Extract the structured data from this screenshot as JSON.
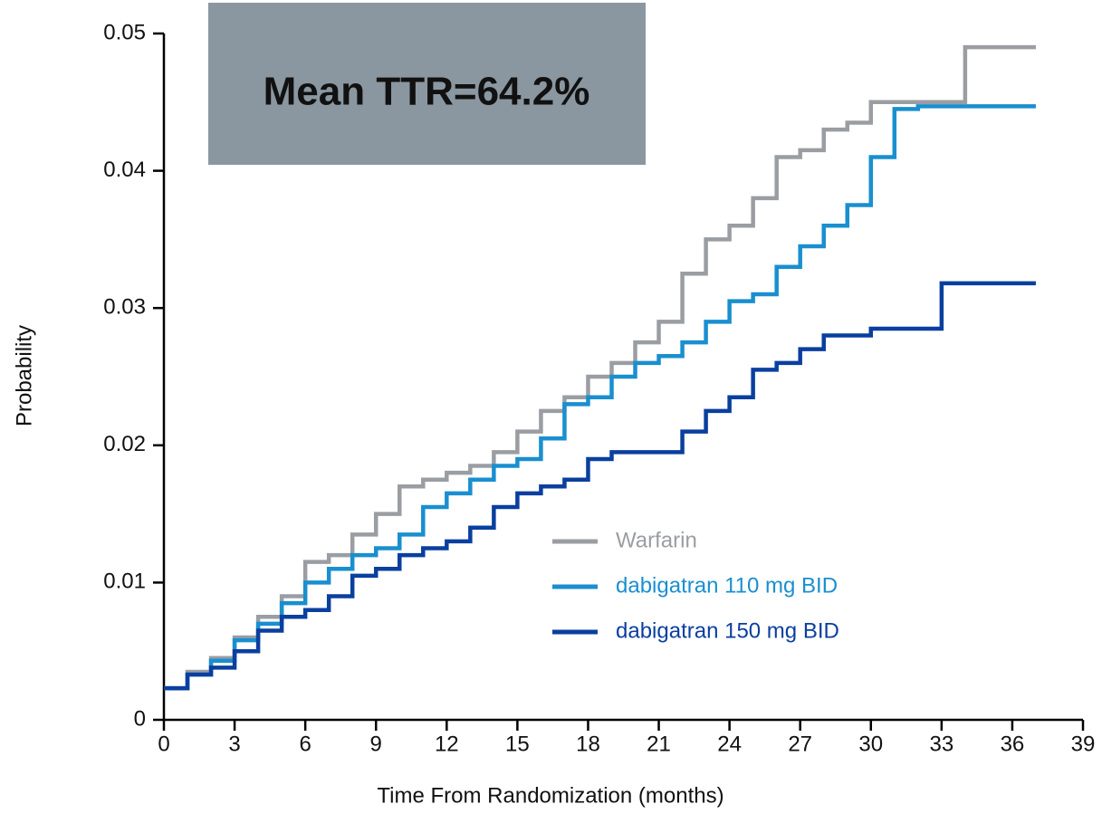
{
  "chart_data": {
    "type": "line",
    "step": "post",
    "annotation": "Mean TTR=64.2%",
    "x_label": "Time From Randomization (months)",
    "y_label": "Probability",
    "x": [
      0,
      1,
      2,
      3,
      4,
      5,
      6,
      7,
      8,
      9,
      10,
      11,
      12,
      13,
      14,
      15,
      16,
      17,
      18,
      19,
      20,
      21,
      22,
      23,
      24,
      25,
      26,
      27,
      28,
      29,
      30,
      31,
      32,
      33,
      34,
      35,
      36,
      37
    ],
    "series": [
      {
        "name": "Warfarin",
        "color": "#9a9ea3",
        "values": [
          0.0023,
          0.0035,
          0.0045,
          0.006,
          0.0075,
          0.009,
          0.0115,
          0.012,
          0.0135,
          0.015,
          0.017,
          0.0175,
          0.018,
          0.0185,
          0.0195,
          0.021,
          0.0225,
          0.0235,
          0.025,
          0.026,
          0.0275,
          0.029,
          0.0325,
          0.035,
          0.036,
          0.038,
          0.041,
          0.0415,
          0.043,
          0.0435,
          0.045,
          0.045,
          0.045,
          0.045,
          0.049,
          0.049,
          0.049,
          0.049
        ]
      },
      {
        "name": "dabigatran 110 mg BID",
        "color": "#1a8fd0",
        "values": [
          0.0023,
          0.0033,
          0.0043,
          0.0058,
          0.007,
          0.0085,
          0.01,
          0.011,
          0.012,
          0.0125,
          0.0135,
          0.0155,
          0.0165,
          0.0175,
          0.0185,
          0.019,
          0.0205,
          0.023,
          0.0235,
          0.025,
          0.026,
          0.0265,
          0.0275,
          0.029,
          0.0305,
          0.031,
          0.033,
          0.0345,
          0.036,
          0.0375,
          0.041,
          0.0445,
          0.0447,
          0.0447,
          0.0447,
          0.0447,
          0.0447,
          0.0447
        ]
      },
      {
        "name": "dabigatran 150 mg BID",
        "color": "#0a3fa0",
        "values": [
          0.0023,
          0.0033,
          0.0038,
          0.005,
          0.0065,
          0.0075,
          0.008,
          0.009,
          0.0105,
          0.011,
          0.012,
          0.0125,
          0.013,
          0.014,
          0.0155,
          0.0165,
          0.017,
          0.0175,
          0.019,
          0.0195,
          0.0195,
          0.0195,
          0.021,
          0.0225,
          0.0235,
          0.0255,
          0.026,
          0.027,
          0.028,
          0.028,
          0.0285,
          0.0285,
          0.0285,
          0.0318,
          0.0318,
          0.0318,
          0.0318,
          0.0318
        ]
      }
    ],
    "xlim": [
      0,
      39
    ],
    "xticks": [
      0,
      3,
      6,
      9,
      12,
      15,
      18,
      21,
      24,
      27,
      30,
      33,
      36,
      39
    ],
    "ylim": [
      0,
      0.05
    ],
    "yticks": [
      0,
      0.01,
      0.02,
      0.03,
      0.04,
      0.05
    ],
    "grid": false
  }
}
